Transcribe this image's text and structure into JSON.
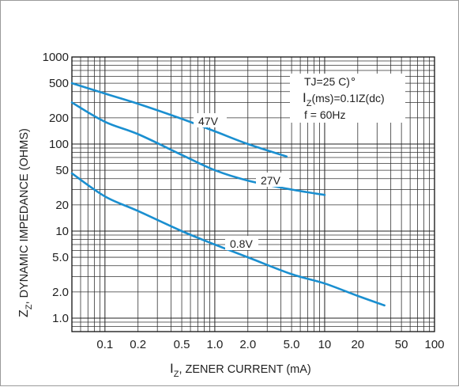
{
  "chart_data": {
    "type": "line",
    "xlabel": {
      "prefix": "I",
      "sub": "Z",
      "rest": ", ZENER CURRENT (mA)"
    },
    "ylabel": {
      "prefix": "Z",
      "sub": "Z",
      "rest": ", DYNAMIC IMPEDANCE (OHMS)"
    },
    "x_scale": "log",
    "y_scale": "log",
    "xlim": [
      0.05,
      100
    ],
    "ylim": [
      0.7,
      1000
    ],
    "grid": true,
    "x_ticks": [
      {
        "value": 0.1,
        "label": "0.1"
      },
      {
        "value": 0.2,
        "label": "0.2"
      },
      {
        "value": 0.5,
        "label": "0.5"
      },
      {
        "value": 1,
        "label": "1.0"
      },
      {
        "value": 2,
        "label": "2.0"
      },
      {
        "value": 5,
        "label": "5.0"
      },
      {
        "value": 10,
        "label": "10"
      },
      {
        "value": 20,
        "label": "20"
      },
      {
        "value": 50,
        "label": "50"
      },
      {
        "value": 100,
        "label": "100"
      }
    ],
    "y_ticks": [
      {
        "value": 1,
        "label": "1.0"
      },
      {
        "value": 2,
        "label": "2.0"
      },
      {
        "value": 5,
        "label": "5.0"
      },
      {
        "value": 10,
        "label": "10"
      },
      {
        "value": 20,
        "label": "20"
      },
      {
        "value": 50,
        "label": "50"
      },
      {
        "value": 100,
        "label": "100"
      },
      {
        "value": 200,
        "label": "200"
      },
      {
        "value": 500,
        "label": "500"
      },
      {
        "value": 1000,
        "label": "1000"
      }
    ],
    "series": [
      {
        "name": "47V",
        "color": "#1a8fd0",
        "x": [
          0.05,
          0.1,
          0.2,
          0.5,
          1,
          2,
          4.5
        ],
        "y": [
          500,
          380,
          290,
          195,
          140,
          100,
          72
        ]
      },
      {
        "name": "27V",
        "color": "#1a8fd0",
        "x": [
          0.05,
          0.1,
          0.2,
          0.5,
          1,
          2,
          5,
          10
        ],
        "y": [
          300,
          180,
          130,
          75,
          50,
          38,
          30,
          26
        ]
      },
      {
        "name": "0.8V",
        "color": "#1a8fd0",
        "x": [
          0.05,
          0.1,
          0.2,
          0.5,
          1,
          2,
          5,
          10,
          20,
          35
        ],
        "y": [
          46,
          25,
          17,
          10,
          7,
          5,
          3.2,
          2.5,
          1.8,
          1.4
        ]
      }
    ],
    "notes": {
      "line1": "TJ=25 C)",
      "line2_prefix": "I",
      "line2_sub": "Z",
      "line2_rest": "(ms)=0.1IZ(dc)",
      "line3": "f = 60Hz"
    }
  }
}
